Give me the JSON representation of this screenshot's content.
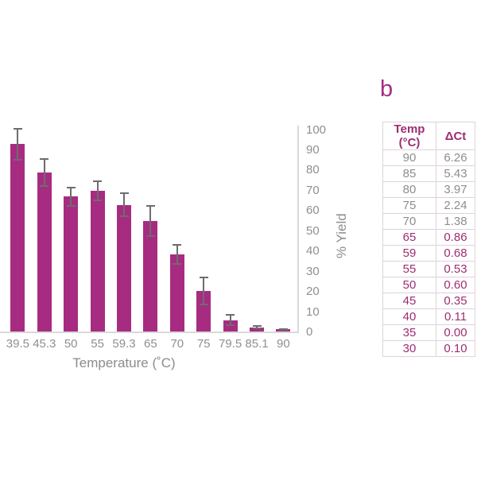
{
  "panel_b_label": "b",
  "chart_data": {
    "type": "bar",
    "title": "",
    "xlabel": "Temperature (˚C)",
    "ylabel": "% Yield",
    "ylim": [
      0,
      100
    ],
    "ytick_step": 10,
    "yticks": [
      100,
      90,
      80,
      70,
      60,
      50,
      40,
      30,
      20,
      10,
      0
    ],
    "y_axis_side": "right",
    "grid": false,
    "categories": [
      "39.5",
      "45.3",
      "50",
      "55",
      "59.3",
      "65",
      "70",
      "75",
      "79.5",
      "85.1",
      "90"
    ],
    "values": [
      93,
      79,
      67,
      70,
      63,
      55,
      38.5,
      20.5,
      6,
      2.5,
      1.5
    ],
    "errors": [
      8,
      7,
      5,
      5,
      6,
      8,
      5,
      7,
      3,
      1,
      0.6
    ],
    "clipped_left_category_fragment": "5",
    "bar_color": "#A72C81",
    "error_bar_color": "#6F6B6F"
  },
  "table": {
    "headers": [
      "Temp (°C)",
      "ΔCt"
    ],
    "rows": [
      {
        "temp": "90",
        "dct": "6.26",
        "color_style": "gray"
      },
      {
        "temp": "85",
        "dct": "5.43",
        "color_style": "gray"
      },
      {
        "temp": "80",
        "dct": "3.97",
        "color_style": "gray"
      },
      {
        "temp": "75",
        "dct": "2.24",
        "color_style": "gray"
      },
      {
        "temp": "70",
        "dct": "1.38",
        "color_style": "gray"
      },
      {
        "temp": "65",
        "dct": "0.86",
        "color_style": "magenta"
      },
      {
        "temp": "59",
        "dct": "0.68",
        "color_style": "magenta"
      },
      {
        "temp": "55",
        "dct": "0.53",
        "color_style": "magenta"
      },
      {
        "temp": "50",
        "dct": "0.60",
        "color_style": "magenta"
      },
      {
        "temp": "45",
        "dct": "0.35",
        "color_style": "magenta"
      },
      {
        "temp": "40",
        "dct": "0.11",
        "color_style": "magenta"
      },
      {
        "temp": "35",
        "dct": "0.00",
        "color_style": "magenta"
      },
      {
        "temp": "30",
        "dct": "0.10",
        "color_style": "magenta"
      }
    ]
  },
  "colors": {
    "bar": "#A72C81",
    "error_bar": "#6F6B6F",
    "axis_line": "#D9D9D9",
    "axis_text": "#8F8F8F",
    "axis_title_text": "#8C8C8C",
    "table_border": "#DDD2DC",
    "table_text_gray": "#8D8D8D",
    "table_text_magenta": "#9E2D72",
    "panel_label": "#A62C82"
  }
}
